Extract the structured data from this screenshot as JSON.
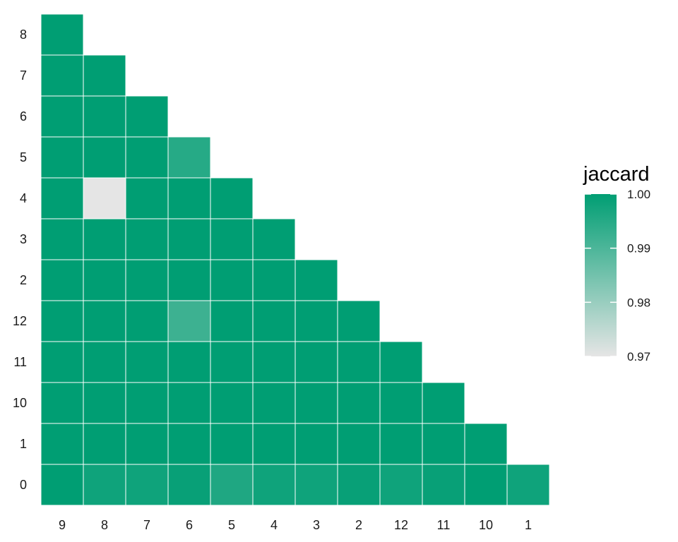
{
  "chart_data": {
    "type": "heatmap",
    "title": "",
    "xlabel": "",
    "ylabel": "",
    "x_categories": [
      "9",
      "8",
      "7",
      "6",
      "5",
      "4",
      "3",
      "2",
      "12",
      "11",
      "10",
      "1"
    ],
    "y_categories_top_to_bottom": [
      "8",
      "7",
      "6",
      "5",
      "4",
      "3",
      "2",
      "12",
      "11",
      "10",
      "1",
      "0"
    ],
    "values": [
      [
        1.0
      ],
      [
        1.0,
        1.0
      ],
      [
        1.0,
        1.0,
        1.0
      ],
      [
        1.0,
        1.0,
        1.0,
        0.995
      ],
      [
        1.0,
        0.97,
        1.0,
        1.0,
        1.0
      ],
      [
        1.0,
        1.0,
        1.0,
        1.0,
        1.0,
        1.0
      ],
      [
        1.0,
        1.0,
        1.0,
        1.0,
        1.0,
        1.0,
        1.0
      ],
      [
        1.0,
        1.0,
        1.0,
        0.992,
        1.0,
        1.0,
        1.0,
        1.0
      ],
      [
        1.0,
        1.0,
        1.0,
        1.0,
        1.0,
        1.0,
        1.0,
        1.0,
        1.0
      ],
      [
        1.0,
        1.0,
        1.0,
        1.0,
        1.0,
        1.0,
        1.0,
        1.0,
        1.0,
        1.0
      ],
      [
        1.0,
        1.0,
        1.0,
        1.0,
        1.0,
        1.0,
        1.0,
        1.0,
        1.0,
        1.0,
        1.0
      ],
      [
        1.0,
        0.998,
        0.998,
        0.999,
        0.996,
        0.998,
        0.998,
        0.999,
        0.998,
        0.999,
        1.0,
        0.998
      ]
    ],
    "legend": {
      "title": "jaccard",
      "min": 0.97,
      "max": 1.0,
      "ticks": [
        "1.00",
        "0.99",
        "0.98",
        "0.97"
      ],
      "placement": "right"
    },
    "colors": {
      "low": "#e5e5e5",
      "high": "#009e73",
      "cell_border": "#ffffff"
    }
  }
}
